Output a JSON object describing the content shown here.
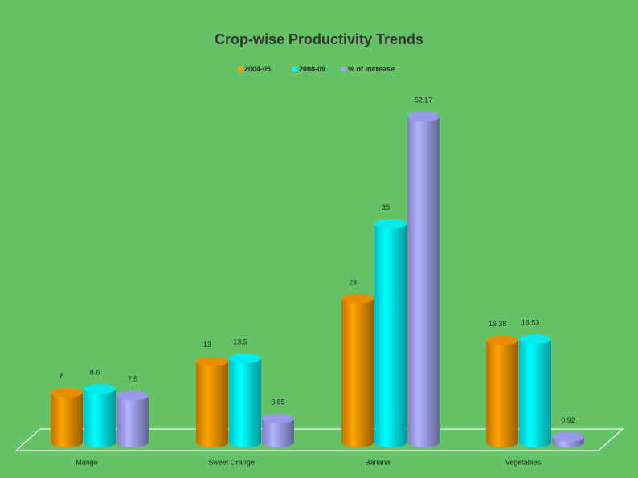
{
  "chart_data": {
    "type": "bar",
    "title": "Crop-wise Productivity Trends",
    "categories": [
      "Mango",
      "Sweet Orange",
      "Banana",
      "Vegetables"
    ],
    "series": [
      {
        "name": "2004-05",
        "color": "#ff9900",
        "values": [
          8,
          13,
          23,
          16.38
        ]
      },
      {
        "name": "2008-09",
        "color": "#00ffff",
        "values": [
          8.6,
          13.5,
          35,
          16.53
        ]
      },
      {
        "name": "% of increase",
        "color": "#a6a6ff",
        "values": [
          7.5,
          3.85,
          52.17,
          0.92
        ]
      }
    ],
    "legend": "top",
    "grid": false
  }
}
